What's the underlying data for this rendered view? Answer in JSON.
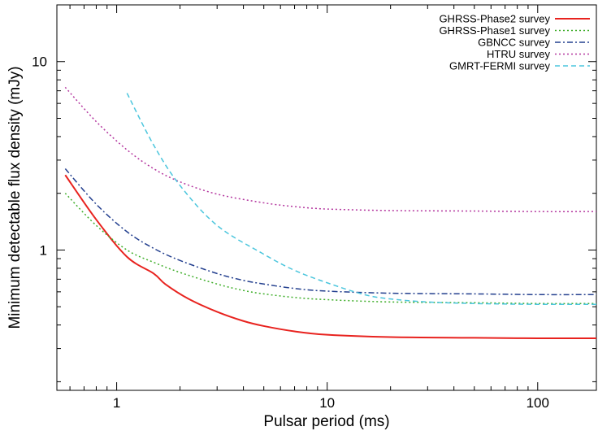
{
  "chart_data": {
    "type": "line",
    "xlabel": "Pulsar period (ms)",
    "ylabel": "Minimum detectable flux density (mJy)",
    "xscale": "log",
    "yscale": "log",
    "xlim": [
      0.52,
      190
    ],
    "ylim": [
      0.18,
      20
    ],
    "xticks": [
      {
        "value": 1,
        "label": "1"
      },
      {
        "value": 10,
        "label": "10"
      },
      {
        "value": 100,
        "label": "100"
      }
    ],
    "yticks": [
      {
        "value": 1,
        "label": "1"
      },
      {
        "value": 10,
        "label": "10"
      }
    ],
    "grid": false,
    "legend_position": "top-right",
    "series": [
      {
        "name": "GHRSS-Phase2 survey",
        "color": "#e8231f",
        "dash": "solid",
        "x": [
          0.57,
          0.8,
          1.12,
          1.5,
          1.7,
          2.2,
          3,
          4,
          5,
          7,
          10,
          20,
          50,
          100,
          190
        ],
        "y": [
          2.5,
          1.45,
          0.92,
          0.75,
          0.66,
          0.55,
          0.47,
          0.42,
          0.395,
          0.37,
          0.355,
          0.345,
          0.342,
          0.34,
          0.34
        ]
      },
      {
        "name": "GHRSS-Phase1 survey",
        "color": "#3fae2a",
        "dash": "dotted",
        "x": [
          0.57,
          0.8,
          1.12,
          1.5,
          2,
          3,
          4,
          5,
          7,
          10,
          20,
          50,
          100,
          190
        ],
        "y": [
          2.0,
          1.35,
          1.0,
          0.86,
          0.76,
          0.66,
          0.61,
          0.585,
          0.56,
          0.545,
          0.53,
          0.525,
          0.52,
          0.52
        ]
      },
      {
        "name": "GBNCC survey",
        "color": "#24408f",
        "dash": "dashdot",
        "x": [
          0.57,
          0.8,
          1.12,
          1.5,
          2,
          3,
          4,
          5,
          7,
          10,
          20,
          50,
          100,
          190
        ],
        "y": [
          2.7,
          1.75,
          1.25,
          1.02,
          0.88,
          0.75,
          0.69,
          0.66,
          0.625,
          0.605,
          0.59,
          0.585,
          0.58,
          0.58
        ]
      },
      {
        "name": "HTRU survey",
        "color": "#b4379f",
        "dash": "dotted",
        "x": [
          0.57,
          0.8,
          1.12,
          1.5,
          2,
          3,
          5,
          7,
          10,
          20,
          50,
          100,
          190
        ],
        "y": [
          7.3,
          4.8,
          3.4,
          2.7,
          2.3,
          1.98,
          1.78,
          1.7,
          1.65,
          1.62,
          1.61,
          1.6,
          1.6
        ]
      },
      {
        "name": "GMRT-FERMI survey",
        "color": "#4cc6dd",
        "dash": "dashed",
        "x": [
          1.12,
          1.5,
          2,
          3,
          5,
          7,
          10,
          15,
          20,
          30,
          50,
          100,
          190
        ],
        "y": [
          6.8,
          3.6,
          2.2,
          1.35,
          0.95,
          0.78,
          0.67,
          0.58,
          0.55,
          0.53,
          0.52,
          0.515,
          0.515
        ]
      }
    ]
  }
}
